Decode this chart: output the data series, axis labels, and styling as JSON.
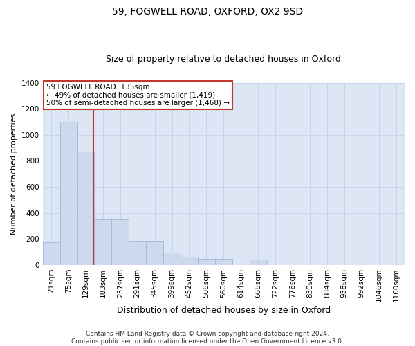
{
  "title_line1": "59, FOGWELL ROAD, OXFORD, OX2 9SD",
  "title_line2": "Size of property relative to detached houses in Oxford",
  "xlabel": "Distribution of detached houses by size in Oxford",
  "ylabel": "Number of detached properties",
  "categories": [
    "21sqm",
    "75sqm",
    "129sqm",
    "183sqm",
    "237sqm",
    "291sqm",
    "345sqm",
    "399sqm",
    "452sqm",
    "506sqm",
    "560sqm",
    "614sqm",
    "668sqm",
    "722sqm",
    "776sqm",
    "830sqm",
    "884sqm",
    "938sqm",
    "992sqm",
    "1046sqm",
    "1100sqm"
  ],
  "values": [
    175,
    1100,
    870,
    350,
    350,
    185,
    185,
    95,
    65,
    45,
    45,
    0,
    40,
    0,
    0,
    0,
    0,
    0,
    0,
    0,
    0
  ],
  "bar_color": "#cdd9ec",
  "bar_edge_color": "#a0b8d8",
  "vline_color": "#c0392b",
  "vline_x_index": 2.425,
  "annotation_text": "59 FOGWELL ROAD: 135sqm\n← 49% of detached houses are smaller (1,419)\n50% of semi-detached houses are larger (1,468) →",
  "annotation_box_color": "#c0392b",
  "ylim": [
    0,
    1400
  ],
  "yticks": [
    0,
    200,
    400,
    600,
    800,
    1000,
    1200,
    1400
  ],
  "footer_line1": "Contains HM Land Registry data © Crown copyright and database right 2024.",
  "footer_line2": "Contains public sector information licensed under the Open Government Licence v3.0.",
  "grid_color": "#c8d4e8",
  "background_color": "#dce6f5",
  "title_fontsize": 10,
  "subtitle_fontsize": 9,
  "ylabel_fontsize": 8,
  "xlabel_fontsize": 9,
  "tick_fontsize": 7.5,
  "footer_fontsize": 6.5
}
